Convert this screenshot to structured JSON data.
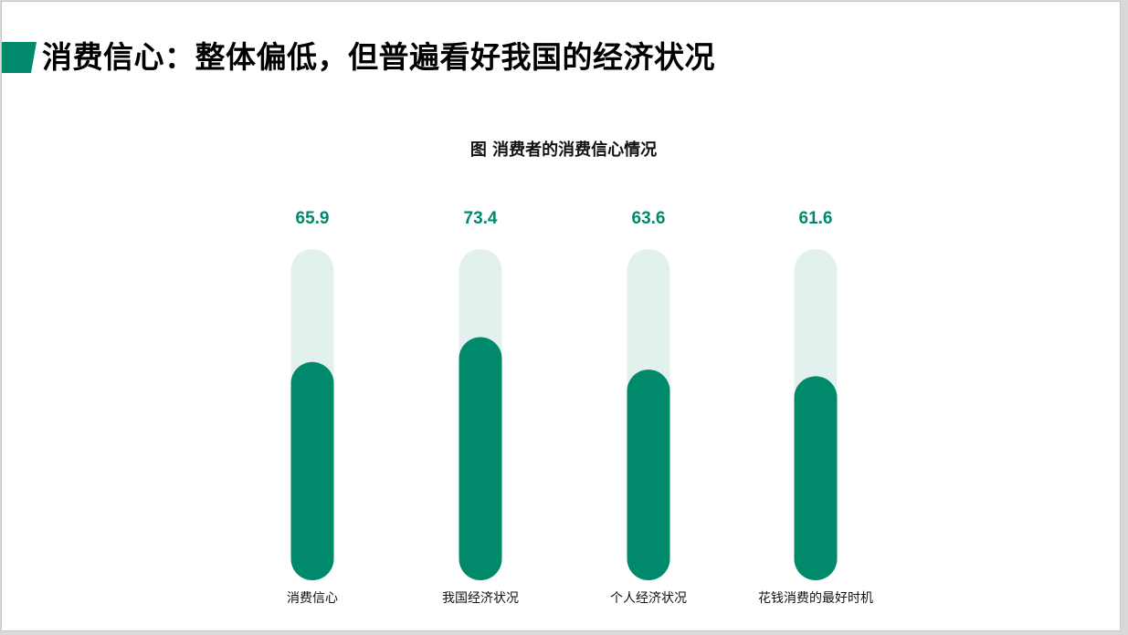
{
  "page": {
    "title": "消费信心：整体偏低，但普遍看好我国的经济状况"
  },
  "colors": {
    "accent": "#008a6b",
    "track": "#e3f1ee",
    "value_text": "#008a6b"
  },
  "chart_data": {
    "type": "bar",
    "title": "图 消费者的消费信心情况",
    "categories": [
      "消费信心",
      "我国经济状况",
      "个人经济状况",
      "花钱消费的最好时机"
    ],
    "values": [
      65.9,
      73.4,
      63.6,
      61.6
    ],
    "value_labels": [
      "65.9",
      "73.4",
      "63.6",
      "61.6"
    ],
    "ylim": [
      0,
      100
    ],
    "xlabel": "",
    "ylabel": "",
    "grid": false,
    "legend": "none"
  }
}
